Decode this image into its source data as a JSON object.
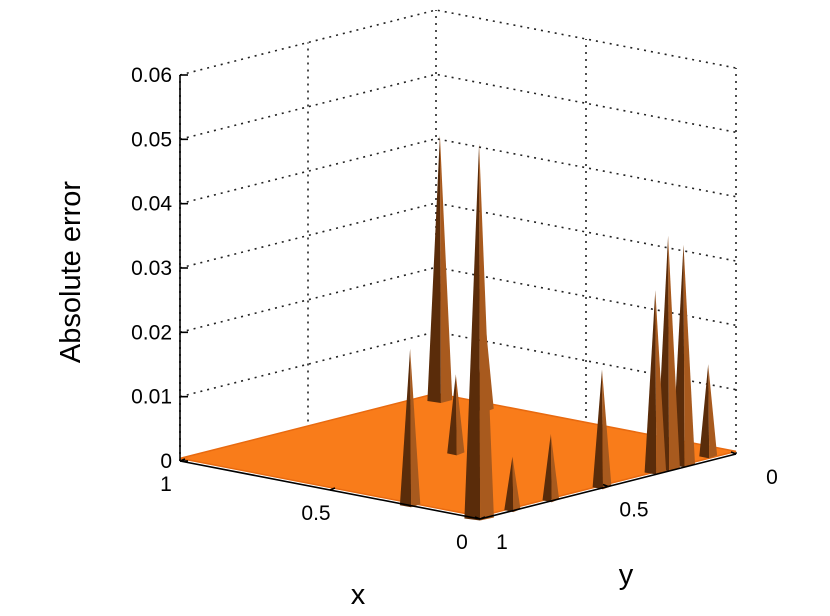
{
  "chart_data": {
    "type": "surface3d",
    "title": "",
    "xlabel": "x",
    "ylabel": "y",
    "zlabel": "Absolute error",
    "xlim": [
      0,
      1
    ],
    "ylim": [
      0,
      1
    ],
    "zlim": [
      0,
      0.06
    ],
    "x_ticks": [
      "1",
      "0.5",
      "0"
    ],
    "y_ticks": [
      "1",
      "0.5",
      "0"
    ],
    "z_ticks": [
      "0",
      "0.01",
      "0.02",
      "0.03",
      "0.04",
      "0.05",
      "0.06"
    ],
    "z_tick_values": [
      0,
      0.01,
      0.02,
      0.03,
      0.04,
      0.05,
      0.06
    ],
    "grid": true,
    "surface_color": "#f97c1a",
    "shadow_color": "#5a2c0a",
    "peaks": [
      {
        "x": 0.97,
        "y": 0.98,
        "z": 0.041
      },
      {
        "x": 0.82,
        "y": 0.98,
        "z": 0.014
      },
      {
        "x": 0.55,
        "y": 0.55,
        "z": 0.012
      },
      {
        "x": 0.05,
        "y": 0.95,
        "z": 0.014
      },
      {
        "x": 0.03,
        "y": 0.83,
        "z": 0.034
      },
      {
        "x": 0.03,
        "y": 0.77,
        "z": 0.036
      },
      {
        "x": 0.03,
        "y": 0.72,
        "z": 0.028
      },
      {
        "x": 0.02,
        "y": 0.5,
        "z": 0.018
      },
      {
        "x": 0.02,
        "y": 0.3,
        "z": 0.01
      },
      {
        "x": 0.02,
        "y": 0.15,
        "z": 0.008
      },
      {
        "x": 0.25,
        "y": 0.02,
        "z": 0.024
      },
      {
        "x": 0.02,
        "y": 0.02,
        "z": 0.058
      }
    ]
  }
}
